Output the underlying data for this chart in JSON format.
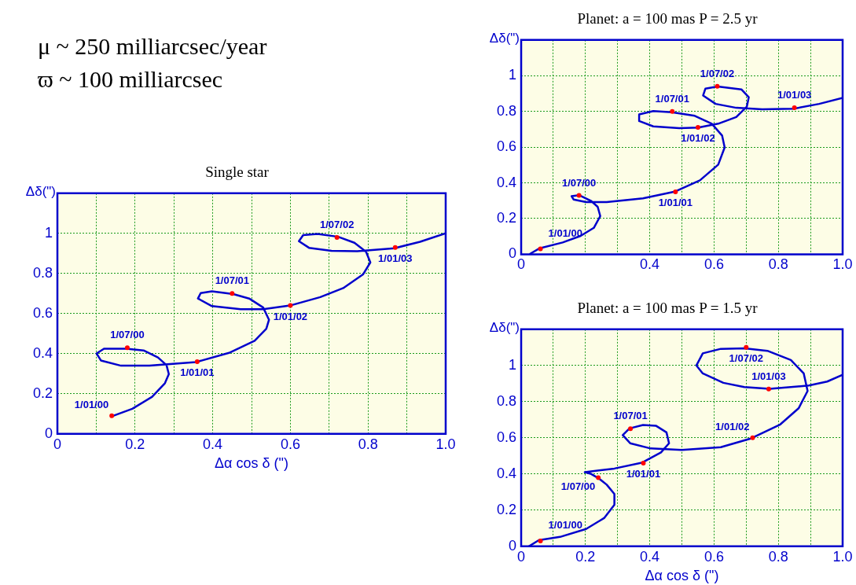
{
  "chart_data": [
    {
      "type": "other",
      "annotations": [
        "μ ~ 250 milliarcsec/year",
        "ϖ ~ 100 milliarcsec"
      ]
    },
    {
      "type": "line",
      "title": "Planet: a = 100 mas P = 2.5 yr",
      "ylabel": "Δδ(\")",
      "xlim": [
        0,
        1
      ],
      "ylim": [
        0,
        1.2
      ],
      "xticks": [
        0,
        {
          "value": 0.1,
          "label": null
        },
        {
          "value": 0.2,
          "label": null
        },
        {
          "value": 0.3,
          "label": null
        },
        0.4,
        {
          "value": 0.5,
          "label": null
        },
        0.6,
        {
          "value": 0.7,
          "label": null
        },
        0.8,
        {
          "value": 0.9,
          "label": null
        },
        {
          "value": 1,
          "label": "1.0"
        }
      ],
      "yticks": [
        0,
        0.2,
        0.4,
        0.6,
        0.8,
        1
      ],
      "grid": true,
      "series": [
        {
          "type": "line",
          "color": "#0000cc",
          "x": [
            0.028,
            0.058,
            0.129,
            0.185,
            0.226,
            0.246,
            0.238,
            0.218,
            0.18,
            0.157,
            0.163,
            0.202,
            0.266,
            0.379,
            0.48,
            0.556,
            0.613,
            0.633,
            0.625,
            0.593,
            0.54,
            0.469,
            0.411,
            0.367,
            0.367,
            0.411,
            0.492,
            0.551,
            0.613,
            0.669,
            0.702,
            0.708,
            0.685,
            0.611,
            0.573,
            0.566,
            0.605,
            0.669,
            0.75,
            0.848,
            0.927,
            1.0
          ],
          "values": [
            0.003,
            0.034,
            0.066,
            0.103,
            0.148,
            0.214,
            0.266,
            0.298,
            0.331,
            0.325,
            0.307,
            0.292,
            0.292,
            0.313,
            0.352,
            0.414,
            0.502,
            0.598,
            0.665,
            0.731,
            0.775,
            0.795,
            0.802,
            0.783,
            0.746,
            0.716,
            0.706,
            0.709,
            0.731,
            0.768,
            0.827,
            0.879,
            0.923,
            0.939,
            0.927,
            0.889,
            0.842,
            0.82,
            0.812,
            0.815,
            0.842,
            0.876
          ]
        },
        {
          "type": "scatter",
          "color": "#ff0000",
          "x": [
            0.06,
            0.18,
            0.48,
            0.47,
            0.55,
            0.61,
            0.85
          ],
          "values": [
            0.03,
            0.33,
            0.35,
            0.8,
            0.71,
            0.94,
            0.82
          ]
        }
      ],
      "annotations": [
        {
          "text": "1/01/00",
          "x": 0.06,
          "y": 0.03
        },
        {
          "text": "1/07/00",
          "x": 0.18,
          "y": 0.33
        },
        {
          "text": "1/01/01",
          "x": 0.48,
          "y": 0.35
        },
        {
          "text": "1/07/01",
          "x": 0.47,
          "y": 0.8
        },
        {
          "text": "1/01/02",
          "x": 0.55,
          "y": 0.71
        },
        {
          "text": "1/07/02",
          "x": 0.61,
          "y": 0.94
        },
        {
          "text": "1/01/03",
          "x": 0.85,
          "y": 0.82
        }
      ]
    },
    {
      "type": "line",
      "title": "Single star",
      "xlabel": "Δα cos δ (\")",
      "ylabel": "Δδ(\")",
      "xlim": [
        0,
        1
      ],
      "ylim": [
        0,
        1.2
      ],
      "xticks": [
        0,
        {
          "value": 0.1,
          "label": null
        },
        0.2,
        {
          "value": 0.3,
          "label": null
        },
        0.4,
        {
          "value": 0.5,
          "label": null
        },
        0.6,
        {
          "value": 0.7,
          "label": null
        },
        0.8,
        {
          "value": 0.9,
          "label": null
        },
        {
          "value": 1,
          "label": "1.0"
        }
      ],
      "yticks": [
        0,
        0.2,
        0.4,
        0.6,
        0.8,
        1
      ],
      "grid": true,
      "series": [
        {
          "type": "line",
          "color": "#0000cc",
          "x": [
            0.138,
            0.193,
            0.244,
            0.277,
            0.287,
            0.281,
            0.259,
            0.222,
            0.178,
            0.12,
            0.101,
            0.112,
            0.164,
            0.237,
            0.357,
            0.442,
            0.508,
            0.538,
            0.545,
            0.53,
            0.494,
            0.453,
            0.398,
            0.369,
            0.362,
            0.398,
            0.472,
            0.53,
            0.599,
            0.677,
            0.736,
            0.787,
            0.806,
            0.795,
            0.765,
            0.723,
            0.67,
            0.633,
            0.622,
            0.648,
            0.706,
            0.772,
            0.868,
            0.934,
            1.0
          ],
          "values": [
            0.086,
            0.125,
            0.185,
            0.253,
            0.298,
            0.343,
            0.381,
            0.416,
            0.425,
            0.425,
            0.401,
            0.366,
            0.34,
            0.34,
            0.358,
            0.404,
            0.464,
            0.524,
            0.569,
            0.63,
            0.675,
            0.697,
            0.711,
            0.702,
            0.675,
            0.637,
            0.622,
            0.622,
            0.64,
            0.682,
            0.727,
            0.795,
            0.855,
            0.908,
            0.953,
            0.983,
            0.997,
            0.991,
            0.961,
            0.928,
            0.913,
            0.911,
            0.926,
            0.958,
            1.0
          ]
        },
        {
          "type": "scatter",
          "color": "#ff0000",
          "x": [
            0.14,
            0.18,
            0.36,
            0.45,
            0.6,
            0.72,
            0.87
          ],
          "values": [
            0.09,
            0.43,
            0.36,
            0.7,
            0.64,
            0.98,
            0.93
          ]
        }
      ],
      "annotations": [
        {
          "text": "1/01/00",
          "x": 0.14,
          "y": 0.09
        },
        {
          "text": "1/07/00",
          "x": 0.18,
          "y": 0.43
        },
        {
          "text": "1/01/01",
          "x": 0.36,
          "y": 0.36
        },
        {
          "text": "1/07/01",
          "x": 0.45,
          "y": 0.7
        },
        {
          "text": "1/01/02",
          "x": 0.6,
          "y": 0.64
        },
        {
          "text": "1/07/02",
          "x": 0.72,
          "y": 0.98
        },
        {
          "text": "1/01/03",
          "x": 0.87,
          "y": 0.93
        }
      ]
    },
    {
      "type": "line",
      "title": "Planet: a = 100 mas P = 1.5 yr",
      "xlabel": "Δα cos δ (\")",
      "ylabel": "Δδ(\")",
      "xlim": [
        0,
        1
      ],
      "ylim": [
        0,
        1.2
      ],
      "xticks": [
        0,
        {
          "value": 0.1,
          "label": null
        },
        0.2,
        {
          "value": 0.3,
          "label": null
        },
        0.4,
        {
          "value": 0.5,
          "label": null
        },
        0.6,
        {
          "value": 0.7,
          "label": null
        },
        0.8,
        {
          "value": 0.9,
          "label": null
        },
        {
          "value": 1,
          "label": "1.0"
        }
      ],
      "yticks": [
        0,
        0.2,
        0.4,
        0.6,
        0.8,
        1
      ],
      "grid": true,
      "series": [
        {
          "type": "line",
          "color": "#0000cc",
          "x": [
            0.024,
            0.055,
            0.121,
            0.202,
            0.258,
            0.29,
            0.29,
            0.266,
            0.242,
            0.218,
            0.198,
            0.29,
            0.375,
            0.435,
            0.46,
            0.452,
            0.419,
            0.379,
            0.337,
            0.316,
            0.339,
            0.403,
            0.5,
            0.621,
            0.716,
            0.806,
            0.863,
            0.891,
            0.879,
            0.839,
            0.766,
            0.695,
            0.621,
            0.565,
            0.545,
            0.565,
            0.629,
            0.694,
            0.773,
            0.895,
            0.952,
            1.0
          ],
          "values": [
            0.0,
            0.034,
            0.052,
            0.096,
            0.156,
            0.23,
            0.289,
            0.341,
            0.375,
            0.4,
            0.41,
            0.43,
            0.462,
            0.519,
            0.57,
            0.63,
            0.667,
            0.671,
            0.652,
            0.615,
            0.57,
            0.541,
            0.533,
            0.548,
            0.597,
            0.674,
            0.763,
            0.859,
            0.956,
            1.03,
            1.081,
            1.095,
            1.092,
            1.067,
            1.0,
            0.956,
            0.904,
            0.881,
            0.871,
            0.889,
            0.911,
            0.948
          ]
        },
        {
          "type": "scatter",
          "color": "#ff0000",
          "x": [
            0.06,
            0.24,
            0.38,
            0.34,
            0.72,
            0.7,
            0.77
          ],
          "values": [
            0.03,
            0.38,
            0.46,
            0.65,
            0.6,
            1.1,
            0.87
          ]
        }
      ],
      "annotations": [
        {
          "text": "1/01/00",
          "x": 0.06,
          "y": 0.03
        },
        {
          "text": "1/07/00",
          "x": 0.24,
          "y": 0.38
        },
        {
          "text": "1/01/01",
          "x": 0.38,
          "y": 0.46
        },
        {
          "text": "1/07/01",
          "x": 0.34,
          "y": 0.65
        },
        {
          "text": "1/01/02",
          "x": 0.72,
          "y": 0.6
        },
        {
          "text": "1/07/02",
          "x": 0.7,
          "y": 1.1
        },
        {
          "text": "1/01/03",
          "x": 0.77,
          "y": 0.87
        }
      ]
    }
  ]
}
